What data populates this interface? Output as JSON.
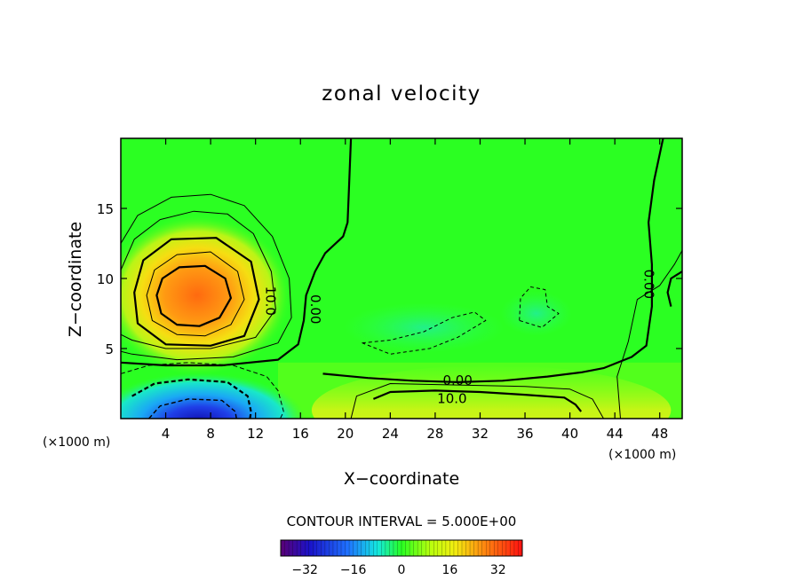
{
  "chart_data": {
    "type": "heatmap",
    "title": "zonal velocity",
    "xlabel": "X−coordinate",
    "ylabel": "Z−coordinate",
    "x_unit_left": "(×1000 m)",
    "x_unit_right": "(×1000 m)",
    "xlim": [
      0,
      50
    ],
    "ylim": [
      0,
      20
    ],
    "x_ticks": [
      4,
      8,
      12,
      16,
      20,
      24,
      28,
      32,
      36,
      40,
      44,
      48
    ],
    "y_ticks": [
      5,
      10,
      15
    ],
    "x_tick_labels": [
      "4",
      "8",
      "12",
      "16",
      "20",
      "24",
      "28",
      "32",
      "36",
      "40",
      "44",
      "48"
    ],
    "y_tick_labels": [
      "5",
      "10",
      "15"
    ],
    "contour_interval_text": "CONTOUR INTERVAL = 5.000E+00",
    "contour_labels": [
      "10.0",
      "0.00",
      "0.00",
      "0.00",
      "10.0"
    ],
    "colorbar": {
      "range": [
        -40,
        40
      ],
      "ticks": [
        -32,
        -16,
        0,
        16,
        32
      ],
      "tick_labels": [
        "−32",
        "−16",
        "0",
        "16",
        "32"
      ]
    },
    "features": [
      {
        "name": "jet core",
        "x": 7,
        "z": 8.5,
        "value": 28
      },
      {
        "name": "lower low",
        "x": 7,
        "z": 1,
        "value": -32
      },
      {
        "name": "surface band",
        "x": 33,
        "z": 1,
        "value": 13
      }
    ]
  }
}
